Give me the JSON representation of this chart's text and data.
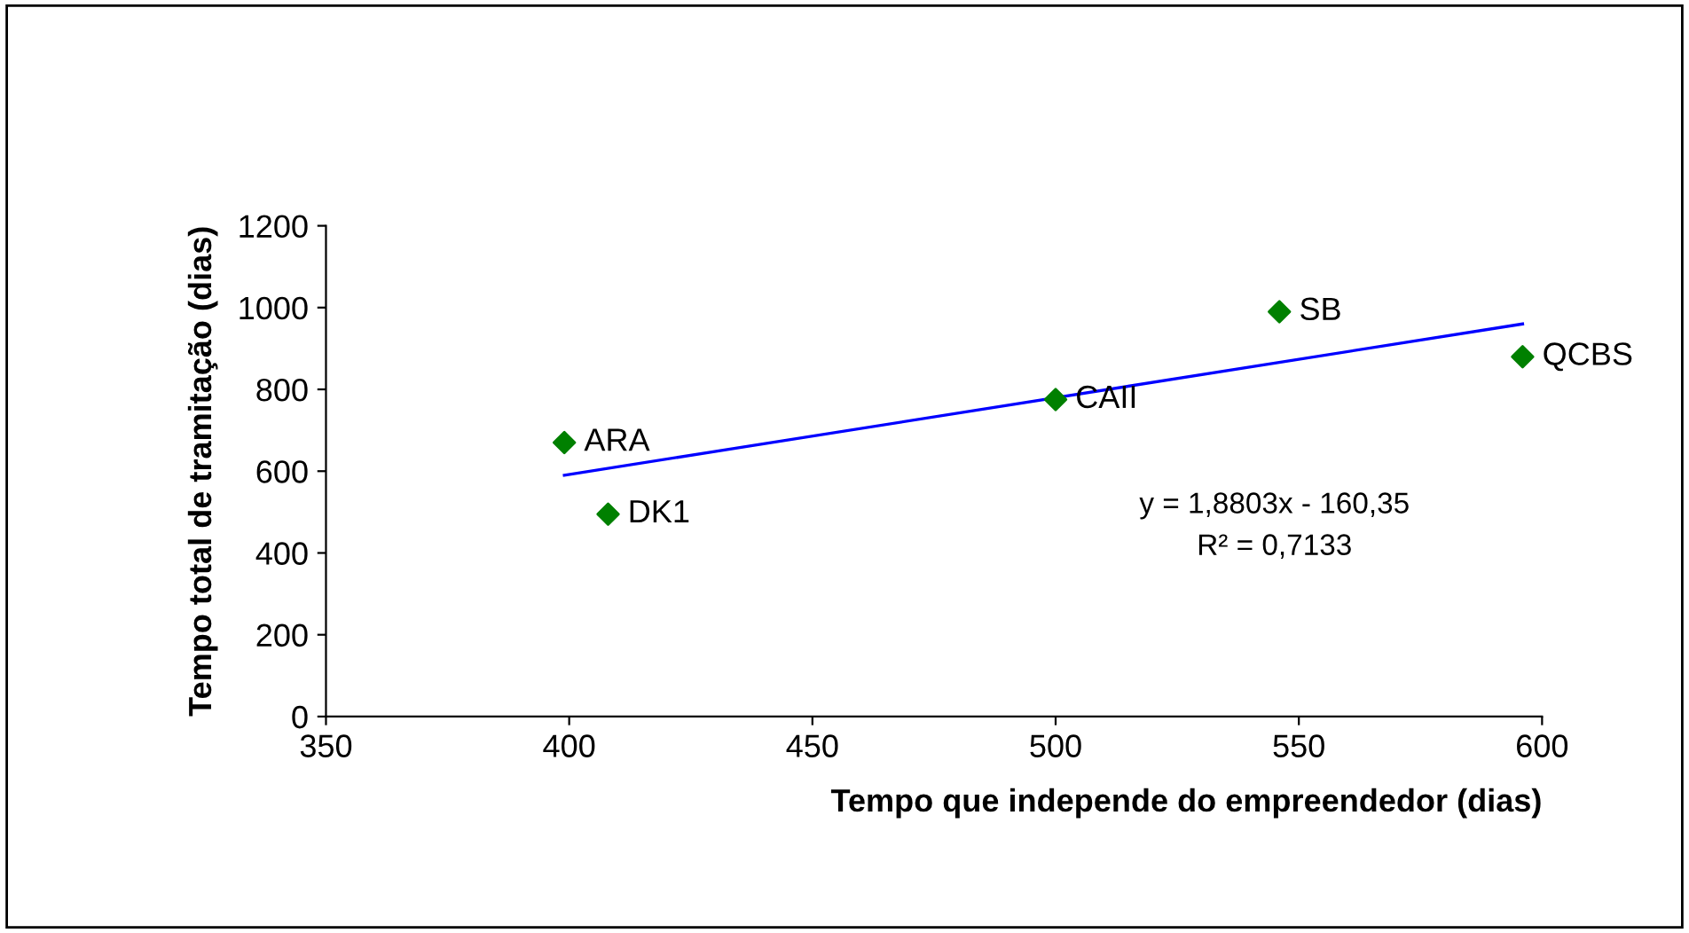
{
  "chart_data": {
    "type": "scatter",
    "xlabel": "Tempo que independe do empreendedor (dias)",
    "ylabel": "Tempo total de tramitação (dias)",
    "xlim": [
      350,
      600
    ],
    "xticks": [
      350,
      400,
      450,
      500,
      550,
      600
    ],
    "ylim": [
      0,
      1200
    ],
    "yticks": [
      0,
      200,
      400,
      600,
      800,
      1000,
      1200
    ],
    "grid": false,
    "legend": false,
    "series": [
      {
        "marker": "diamond",
        "color": "#008000",
        "x": [
          399,
          408,
          500,
          546,
          596
        ],
        "values": [
          670,
          495,
          775,
          990,
          880
        ]
      },
      {
        "type": "line",
        "color": "#0000ff",
        "x": [
          399,
          596
        ],
        "values": [
          590,
          960
        ],
        "line_style": "solid",
        "marker": "none"
      }
    ],
    "annotations": [
      {
        "text": "ARA",
        "x": 399,
        "y": 670
      },
      {
        "text": "DK1",
        "x": 408,
        "y": 495
      },
      {
        "text": "CAII",
        "x": 500,
        "y": 775
      },
      {
        "text": "SB",
        "x": 546,
        "y": 990
      },
      {
        "text": "QCBS",
        "x": 596,
        "y": 880
      },
      "y = 1,8803x - 160,35",
      "R² = 0,7133"
    ]
  }
}
